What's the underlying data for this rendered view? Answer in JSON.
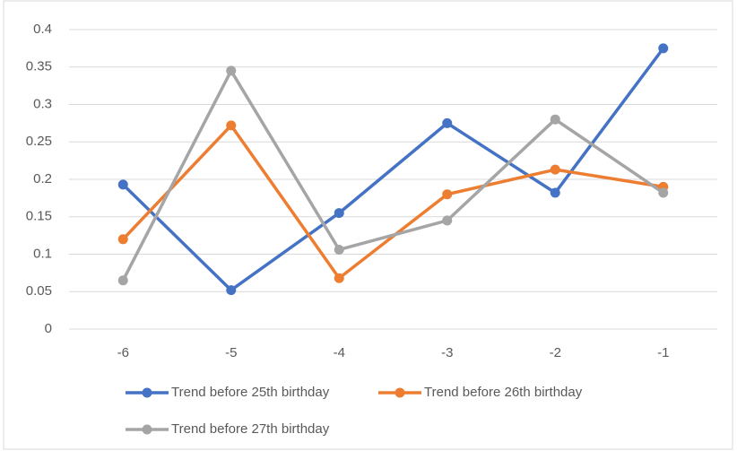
{
  "chart_data": {
    "type": "line",
    "categories": [
      "-6",
      "-5",
      "-4",
      "-3",
      "-2",
      "-1"
    ],
    "series": [
      {
        "name": "Trend before 25th birthday",
        "color": "#4472c4",
        "values": [
          0.193,
          0.052,
          0.155,
          0.275,
          0.182,
          0.375
        ]
      },
      {
        "name": "Trend before 26th birthday",
        "color": "#ed7d31",
        "values": [
          0.12,
          0.272,
          0.068,
          0.18,
          0.213,
          0.19
        ]
      },
      {
        "name": "Trend before 27th birthday",
        "color": "#a5a5a5",
        "values": [
          0.065,
          0.345,
          0.106,
          0.145,
          0.28,
          0.182
        ]
      }
    ],
    "ylim": [
      0,
      0.4
    ],
    "yticks": [
      0,
      0.05,
      0.1,
      0.15,
      0.2,
      0.25,
      0.3,
      0.35,
      0.4
    ],
    "grid": true
  }
}
